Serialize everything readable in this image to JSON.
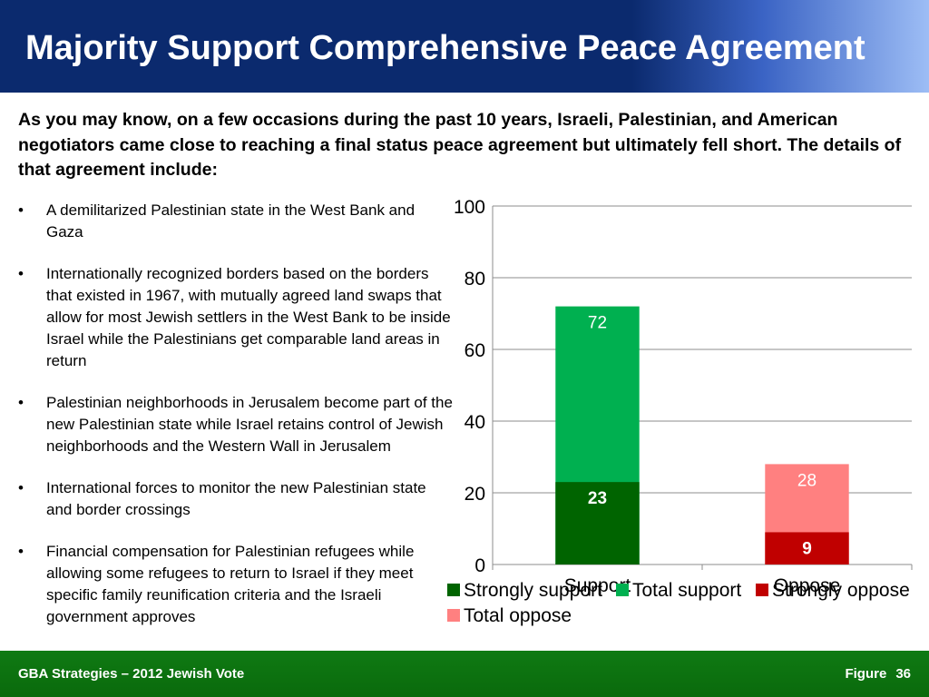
{
  "title": "Majority Support Comprehensive Peace Agreement",
  "question": "As you may know, on a few occasions during the past 10 years, Israeli, Palestinian, and American negotiators came close to reaching a final status peace agreement but ultimately fell short. The details of that agreement include:",
  "bullets": [
    "A demilitarized Palestinian state in the West Bank and Gaza",
    "Internationally recognized borders based on the borders that existed in 1967, with mutually agreed land swaps that allow for most Jewish settlers in the West Bank to be inside Israel while the Palestinians get comparable land areas in return",
    "Palestinian neighborhoods in Jerusalem become part of the new Palestinian state while Israel retains control of Jewish neighborhoods and the Western Wall in Jerusalem",
    "International forces to monitor the new Palestinian state and border crossings",
    "Financial compensation for Palestinian refugees while allowing some refugees to return to Israel if they meet specific family reunification criteria and the Israeli government approves"
  ],
  "bullet_symbol": "•",
  "footer": {
    "left": "GBA Strategies – 2012 Jewish Vote",
    "figure_label": "Figure",
    "figure_number": "36"
  },
  "colors": {
    "strongly_support": "#006400",
    "total_support": "#00b050",
    "strongly_oppose": "#c00000",
    "total_oppose": "#ff8080"
  },
  "chart_data": {
    "type": "bar",
    "stacked_overlay": true,
    "categories": [
      "Support",
      "Oppose"
    ],
    "ylim": [
      0,
      100
    ],
    "yticks": [
      0,
      20,
      40,
      60,
      80,
      100
    ],
    "grid": true,
    "legend_position": "bottom",
    "series": [
      {
        "name": "Strongly support",
        "values": [
          23,
          null
        ],
        "color": "#006400",
        "labels": [
          "23",
          ""
        ]
      },
      {
        "name": "Total support",
        "values": [
          72,
          null
        ],
        "color": "#00b050",
        "labels": [
          "72",
          ""
        ]
      },
      {
        "name": "Strongly oppose",
        "values": [
          null,
          9
        ],
        "color": "#c00000",
        "labels": [
          "",
          "9"
        ]
      },
      {
        "name": "Total oppose",
        "values": [
          null,
          28
        ],
        "color": "#ff8080",
        "labels": [
          "",
          "28"
        ]
      }
    ]
  }
}
